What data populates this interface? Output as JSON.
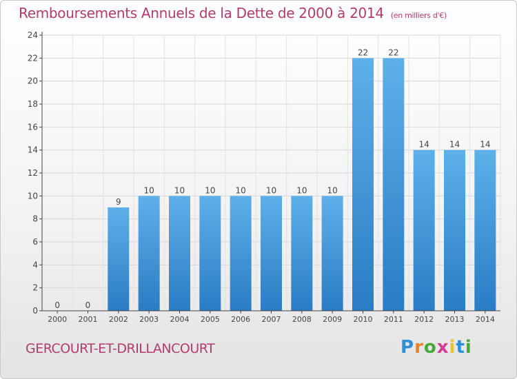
{
  "title": "Remboursements Annuels de la Dette de 2000 à 2014",
  "unit_label": "(en milliers d'€)",
  "commune": "GERCOURT-ET-DRILLANCOURT",
  "logo_text": "Proxiti",
  "colors": {
    "bar_top": "#5eb0ea",
    "bar_bottom": "#2a7cc4",
    "title": "#b23a6e"
  },
  "chart_data": {
    "type": "bar",
    "title": "Remboursements Annuels de la Dette de 2000 à 2014",
    "categories": [
      "2000",
      "2001",
      "2002",
      "2003",
      "2004",
      "2005",
      "2006",
      "2007",
      "2008",
      "2009",
      "2010",
      "2011",
      "2012",
      "2013",
      "2014"
    ],
    "values": [
      0,
      0,
      9,
      10,
      10,
      10,
      10,
      10,
      10,
      10,
      22,
      22,
      14,
      14,
      14
    ],
    "ylim": [
      0,
      24
    ],
    "yticks": [
      0,
      2,
      4,
      6,
      8,
      10,
      12,
      14,
      16,
      18,
      20,
      22,
      24
    ],
    "grid": true,
    "xlabel": "",
    "ylabel": ""
  }
}
